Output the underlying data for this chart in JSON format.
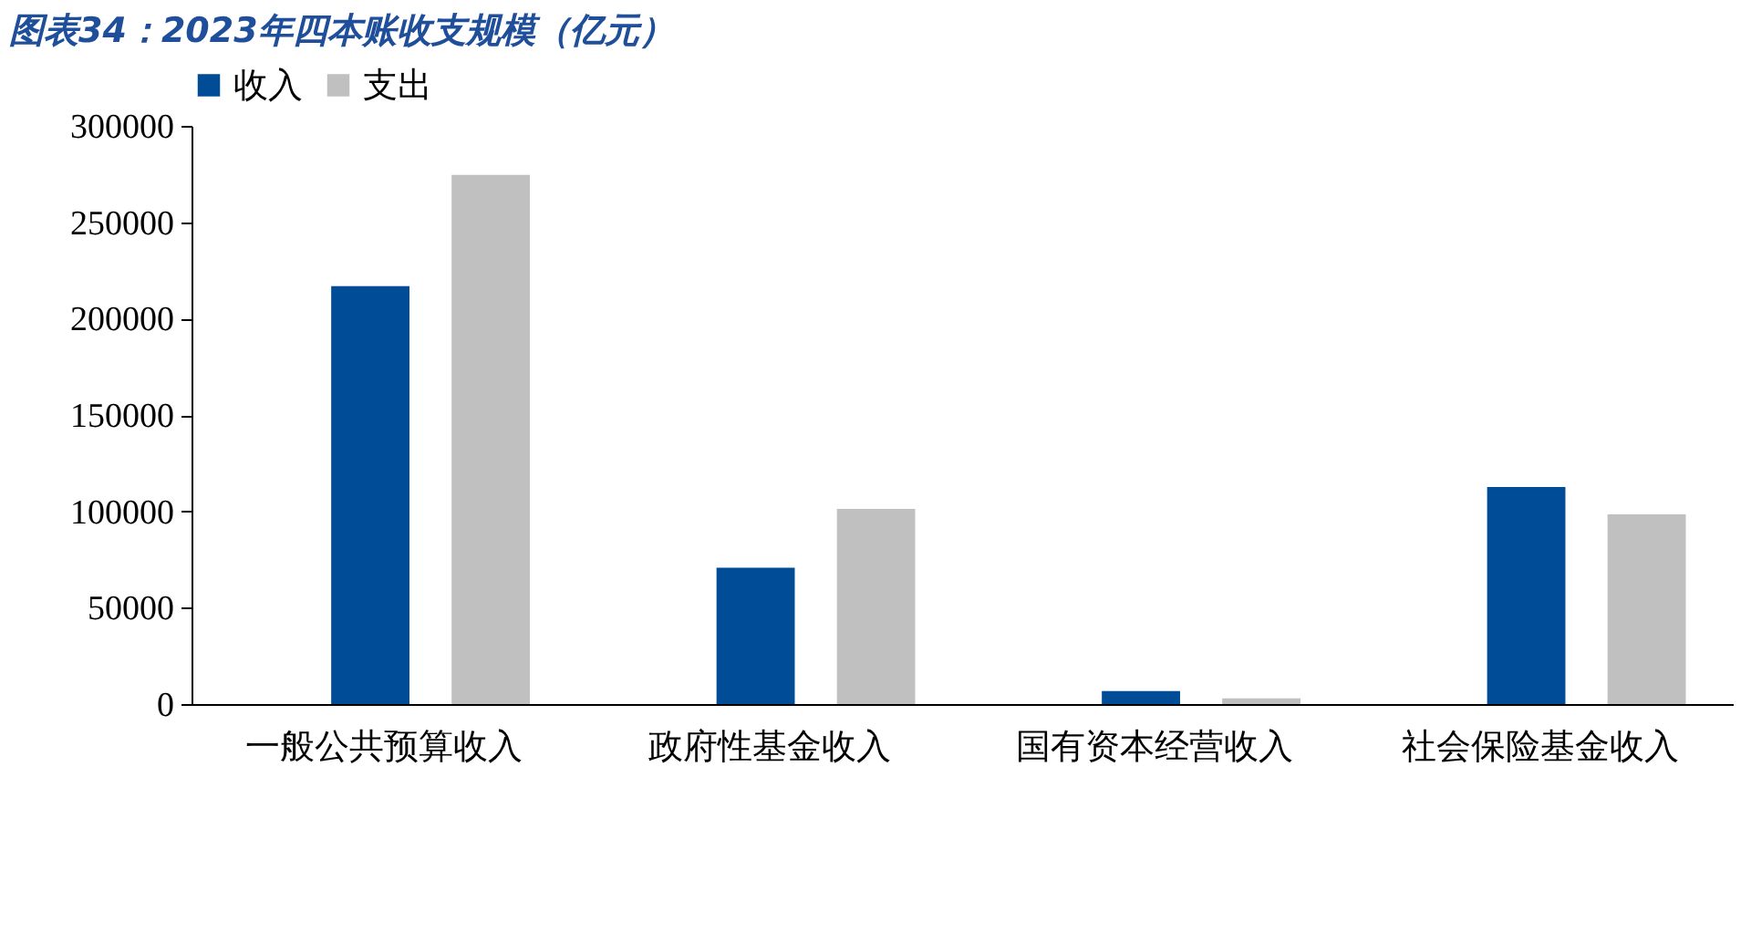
{
  "chart_data": {
    "type": "bar",
    "title": "图表34：2023年四本账收支规模（亿元）",
    "categories": [
      "一般公共预算收入",
      "政府性基金收入",
      "国有资本经营收入",
      "社会保险基金收入"
    ],
    "series": [
      {
        "name": "收入",
        "color": "#004c97",
        "values": [
          216800,
          70700,
          6700,
          112600
        ]
      },
      {
        "name": "支出",
        "color": "#c0c0c0",
        "values": [
          274600,
          101300,
          3000,
          98400
        ]
      }
    ],
    "ylim": [
      0,
      300000
    ],
    "yticks": [
      0,
      50000,
      100000,
      150000,
      200000,
      250000,
      300000
    ],
    "grid": false,
    "legend": "top"
  }
}
